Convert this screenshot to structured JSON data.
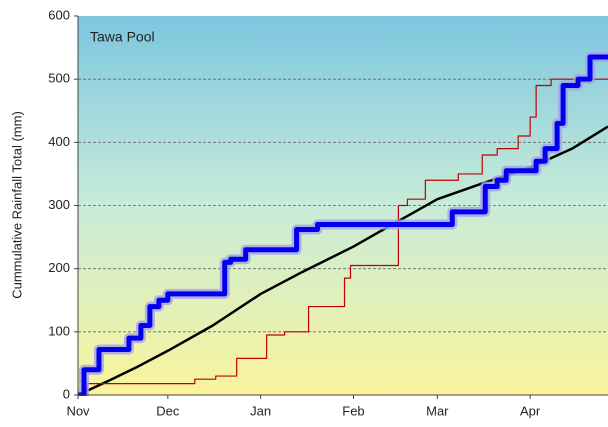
{
  "chart_data": {
    "type": "line",
    "title": "Tawa Pool",
    "y_label": "Cummulative Rainfall Total (mm)",
    "xlim": [
      0,
      177
    ],
    "xticks": [
      {
        "value": 0,
        "label": "Nov"
      },
      {
        "value": 30,
        "label": "Dec"
      },
      {
        "value": 61,
        "label": "Jan"
      },
      {
        "value": 92,
        "label": "Feb"
      },
      {
        "value": 120,
        "label": "Mar"
      },
      {
        "value": 151,
        "label": "Apr"
      }
    ],
    "ylim": [
      0,
      600
    ],
    "yticks": [
      0,
      100,
      200,
      300,
      400,
      500,
      600
    ],
    "grid": true,
    "series": [
      {
        "color": "#000000",
        "width": 2.5,
        "step": false,
        "x": [
          0,
          10,
          20,
          30,
          45,
          61,
          75,
          92,
          105,
          120,
          135,
          151,
          165,
          177
        ],
        "values": [
          0,
          22,
          45,
          70,
          110,
          160,
          195,
          235,
          270,
          310,
          335,
          360,
          390,
          425
        ]
      },
      {
        "color": "#c00000",
        "width": 1.2,
        "step": true,
        "x": [
          0,
          3,
          39,
          46,
          53,
          63,
          69,
          77,
          89,
          91,
          107,
          110,
          116,
          127,
          135,
          140,
          147,
          151,
          153,
          158,
          177
        ],
        "values": [
          0,
          18,
          25,
          30,
          58,
          95,
          100,
          140,
          185,
          205,
          300,
          310,
          340,
          350,
          380,
          390,
          410,
          440,
          490,
          500,
          500
        ]
      },
      {
        "color": "#0000ee",
        "width": 5,
        "step": true,
        "halo": "#a8a0e8",
        "x": [
          0,
          2,
          7,
          17,
          21,
          24,
          27,
          30,
          49,
          51,
          56,
          73,
          80,
          125,
          136,
          140,
          143,
          153,
          156,
          160,
          162,
          167,
          171,
          177
        ],
        "values": [
          0,
          40,
          72,
          90,
          110,
          140,
          150,
          160,
          210,
          215,
          230,
          262,
          270,
          290,
          330,
          340,
          355,
          370,
          390,
          430,
          490,
          500,
          535,
          535
        ]
      }
    ]
  }
}
